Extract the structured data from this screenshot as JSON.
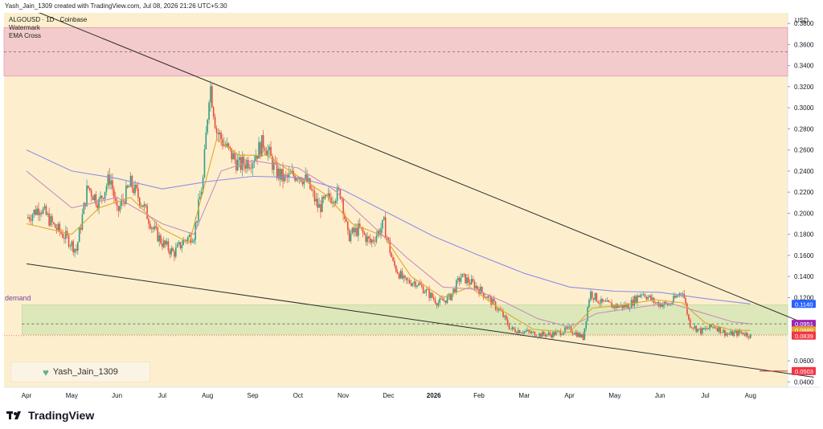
{
  "header": {
    "attribution": "Yash_Jain_1309 created with TradingView.com, Jul 08, 2026 21:26 UTC+5:30"
  },
  "legend": {
    "symbol": "ALGOUSD · 1D · Coinbase",
    "watermark": "Watermark",
    "ema": "EMA Cross"
  },
  "price_axis_label": "USD",
  "zone_label": "demand",
  "watermark_text": "Yash_Jain_1309",
  "footer": {
    "brand": "TradingView"
  },
  "colors": {
    "background": "#fdefce",
    "supply_zone": "#f2c4cd",
    "demand_zone": "#d6e6b5",
    "ema_fast": "#e3a52a",
    "ema_slow": "#c98fbb",
    "ma_long": "#8e8fe8",
    "candle_up": "#2f9d86",
    "candle_down": "#e74c3c",
    "trendline": "#2b2b2b",
    "label_purple": "#9c27b0",
    "label_red": "#f23645",
    "label_blue": "#2962ff"
  },
  "chart_data": {
    "type": "candlestick",
    "symbol": "ALGOUSD",
    "timeframe": "1D",
    "exchange": "Coinbase",
    "y_unit": "USD",
    "ylim": [
      0.035,
      0.39
    ],
    "y_ticks": [
      "0.3800",
      "0.3600",
      "0.3400",
      "0.3200",
      "0.3000",
      "0.2800",
      "0.2600",
      "0.2400",
      "0.2200",
      "0.2000",
      "0.1800",
      "0.1600",
      "0.1400",
      "0.1200",
      "0.0600",
      "0.0400"
    ],
    "x_ticks": [
      "Apr",
      "May",
      "Jun",
      "Jul",
      "Aug",
      "Sep",
      "Oct",
      "Nov",
      "Dec",
      "2026",
      "Feb",
      "Mar",
      "Apr",
      "May",
      "Jun",
      "Jul",
      "Aug"
    ],
    "price_labels": [
      {
        "text": "0.1140",
        "value": 0.114,
        "color": "#2962ff"
      },
      {
        "text": "0.0951",
        "value": 0.0951,
        "color": "#9c27b0"
      },
      {
        "text": "0.0889",
        "value": 0.0889,
        "color": "#e3a52a"
      },
      {
        "text": "0.0839",
        "value": 0.0839,
        "color": "#f23645"
      },
      {
        "text": "0.0503",
        "value": 0.0503,
        "color": "#f23645"
      }
    ],
    "zones": [
      {
        "name": "supply",
        "from": 0.33,
        "to": 0.376,
        "mid": 0.353
      },
      {
        "name": "demand",
        "from": 0.085,
        "to": 0.113,
        "mid": 0.0951
      }
    ],
    "trendlines": [
      {
        "from": [
          0,
          0.395
        ],
        "to": [
          17.4,
          0.092
        ]
      },
      {
        "from": [
          0,
          0.152
        ],
        "to": [
          17.4,
          0.0445
        ]
      }
    ],
    "close_path": [
      [
        0.0,
        0.195
      ],
      [
        0.3,
        0.206
      ],
      [
        0.6,
        0.188
      ],
      [
        0.9,
        0.176
      ],
      [
        1.1,
        0.165
      ],
      [
        1.35,
        0.225
      ],
      [
        1.6,
        0.21
      ],
      [
        1.85,
        0.235
      ],
      [
        2.0,
        0.2
      ],
      [
        2.3,
        0.228
      ],
      [
        2.55,
        0.21
      ],
      [
        2.8,
        0.185
      ],
      [
        3.0,
        0.172
      ],
      [
        3.25,
        0.162
      ],
      [
        3.5,
        0.175
      ],
      [
        3.7,
        0.18
      ],
      [
        3.9,
        0.232
      ],
      [
        4.05,
        0.325
      ],
      [
        4.2,
        0.278
      ],
      [
        4.45,
        0.26
      ],
      [
        4.7,
        0.245
      ],
      [
        5.0,
        0.252
      ],
      [
        5.25,
        0.268
      ],
      [
        5.5,
        0.24
      ],
      [
        5.7,
        0.232
      ],
      [
        6.0,
        0.238
      ],
      [
        6.2,
        0.23
      ],
      [
        6.45,
        0.205
      ],
      [
        6.7,
        0.215
      ],
      [
        6.95,
        0.22
      ],
      [
        7.1,
        0.178
      ],
      [
        7.35,
        0.185
      ],
      [
        7.6,
        0.172
      ],
      [
        7.9,
        0.19
      ],
      [
        8.1,
        0.152
      ],
      [
        8.35,
        0.135
      ],
      [
        8.6,
        0.135
      ],
      [
        8.85,
        0.125
      ],
      [
        9.1,
        0.115
      ],
      [
        9.35,
        0.12
      ],
      [
        9.6,
        0.14
      ],
      [
        9.9,
        0.132
      ],
      [
        10.2,
        0.12
      ],
      [
        10.5,
        0.105
      ],
      [
        10.7,
        0.09
      ],
      [
        11.0,
        0.088
      ],
      [
        11.3,
        0.085
      ],
      [
        11.6,
        0.085
      ],
      [
        12.0,
        0.09
      ],
      [
        12.3,
        0.082
      ],
      [
        12.45,
        0.125
      ],
      [
        12.7,
        0.115
      ],
      [
        13.0,
        0.112
      ],
      [
        13.3,
        0.112
      ],
      [
        13.6,
        0.125
      ],
      [
        13.9,
        0.115
      ],
      [
        14.2,
        0.113
      ],
      [
        14.5,
        0.127
      ],
      [
        14.65,
        0.095
      ],
      [
        14.9,
        0.088
      ],
      [
        15.2,
        0.093
      ],
      [
        15.5,
        0.085
      ],
      [
        15.8,
        0.087
      ],
      [
        16.0,
        0.0839
      ]
    ],
    "series": [
      {
        "name": "EMA (fast)",
        "values": [
          [
            0.0,
            0.19
          ],
          [
            1.0,
            0.18
          ],
          [
            1.6,
            0.205
          ],
          [
            2.3,
            0.215
          ],
          [
            3.0,
            0.185
          ],
          [
            3.6,
            0.172
          ],
          [
            4.2,
            0.27
          ],
          [
            4.7,
            0.255
          ],
          [
            5.3,
            0.255
          ],
          [
            6.0,
            0.235
          ],
          [
            6.6,
            0.218
          ],
          [
            7.2,
            0.19
          ],
          [
            7.9,
            0.178
          ],
          [
            8.5,
            0.14
          ],
          [
            9.2,
            0.12
          ],
          [
            9.8,
            0.13
          ],
          [
            10.5,
            0.108
          ],
          [
            11.2,
            0.09
          ],
          [
            12.0,
            0.087
          ],
          [
            12.5,
            0.11
          ],
          [
            13.2,
            0.113
          ],
          [
            13.9,
            0.118
          ],
          [
            14.5,
            0.115
          ],
          [
            15.0,
            0.096
          ],
          [
            15.6,
            0.089
          ],
          [
            16.0,
            0.0889
          ]
        ]
      },
      {
        "name": "EMA (slow)",
        "values": [
          [
            0.0,
            0.24
          ],
          [
            1.0,
            0.205
          ],
          [
            2.0,
            0.215
          ],
          [
            3.0,
            0.19
          ],
          [
            3.7,
            0.18
          ],
          [
            4.3,
            0.24
          ],
          [
            5.0,
            0.25
          ],
          [
            6.0,
            0.243
          ],
          [
            6.8,
            0.222
          ],
          [
            7.6,
            0.19
          ],
          [
            8.4,
            0.158
          ],
          [
            9.2,
            0.13
          ],
          [
            9.9,
            0.128
          ],
          [
            10.6,
            0.115
          ],
          [
            11.3,
            0.1
          ],
          [
            12.0,
            0.092
          ],
          [
            12.6,
            0.105
          ],
          [
            13.4,
            0.11
          ],
          [
            14.2,
            0.115
          ],
          [
            14.9,
            0.106
          ],
          [
            15.6,
            0.097
          ],
          [
            16.0,
            0.0951
          ]
        ]
      },
      {
        "name": "MA (long)",
        "values": [
          [
            0.0,
            0.26
          ],
          [
            1.0,
            0.24
          ],
          [
            2.0,
            0.233
          ],
          [
            3.0,
            0.223
          ],
          [
            4.0,
            0.23
          ],
          [
            5.0,
            0.235
          ],
          [
            6.0,
            0.234
          ],
          [
            7.0,
            0.222
          ],
          [
            8.0,
            0.2
          ],
          [
            9.0,
            0.178
          ],
          [
            10.0,
            0.16
          ],
          [
            11.0,
            0.143
          ],
          [
            12.0,
            0.13
          ],
          [
            13.0,
            0.126
          ],
          [
            14.0,
            0.125
          ],
          [
            15.0,
            0.119
          ],
          [
            16.0,
            0.114
          ]
        ]
      }
    ]
  }
}
